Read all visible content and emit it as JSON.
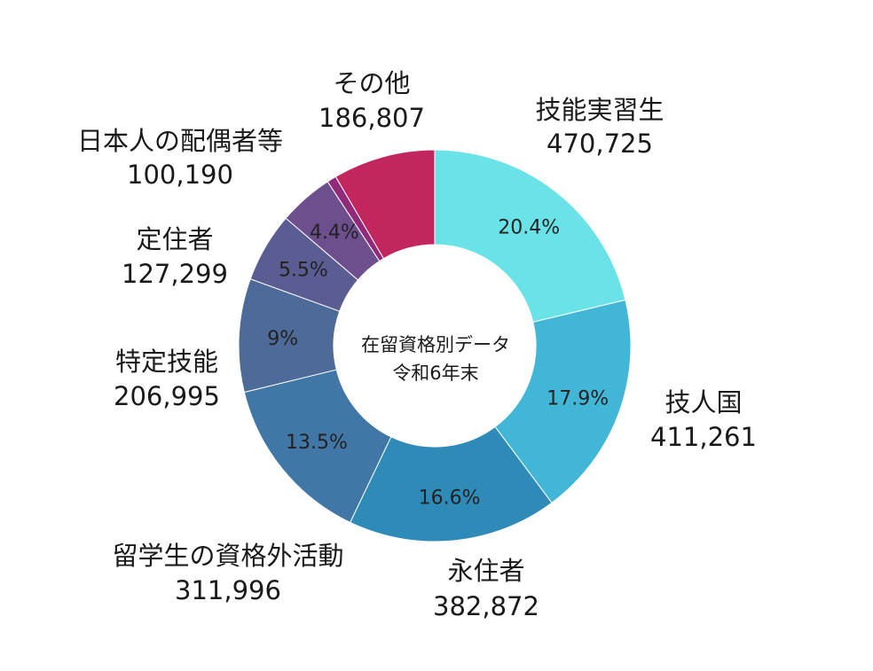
{
  "chart_data": {
    "type": "pie",
    "variant": "donut",
    "center_label": [
      "在留資格別データ",
      "令和6年末"
    ],
    "slices": [
      {
        "name": "技能実習生",
        "value": 470725,
        "value_label": "470,725",
        "percent_label": "20.4%",
        "color": "#6ae3e8"
      },
      {
        "name": "技人国",
        "value": 411261,
        "value_label": "411,261",
        "percent_label": "17.9%",
        "color": "#42b6d6"
      },
      {
        "name": "永住者",
        "value": 382872,
        "value_label": "382,872",
        "percent_label": "16.6%",
        "color": "#2e8bb8"
      },
      {
        "name": "留学生の資格外活動",
        "value": 311996,
        "value_label": "311,996",
        "percent_label": "13.5%",
        "color": "#4177a6"
      },
      {
        "name": "特定技能",
        "value": 206995,
        "value_label": "206,995",
        "percent_label": "9%",
        "color": "#4d6a98"
      },
      {
        "name": "定住者",
        "value": 127299,
        "value_label": "127,299",
        "percent_label": "5.5%",
        "color": "#5a5d92"
      },
      {
        "name": "日本人の配偶者等",
        "value": 100190,
        "value_label": "100,190",
        "percent_label": "4.4%",
        "color": "#6d4f8e"
      },
      {
        "name": "",
        "value": 17000,
        "value_label": "",
        "percent_label": "",
        "color": "#922a7a"
      },
      {
        "name": "その他",
        "value": 186807,
        "value_label": "186,807",
        "percent_label": "",
        "color": "#c2265f"
      }
    ]
  }
}
